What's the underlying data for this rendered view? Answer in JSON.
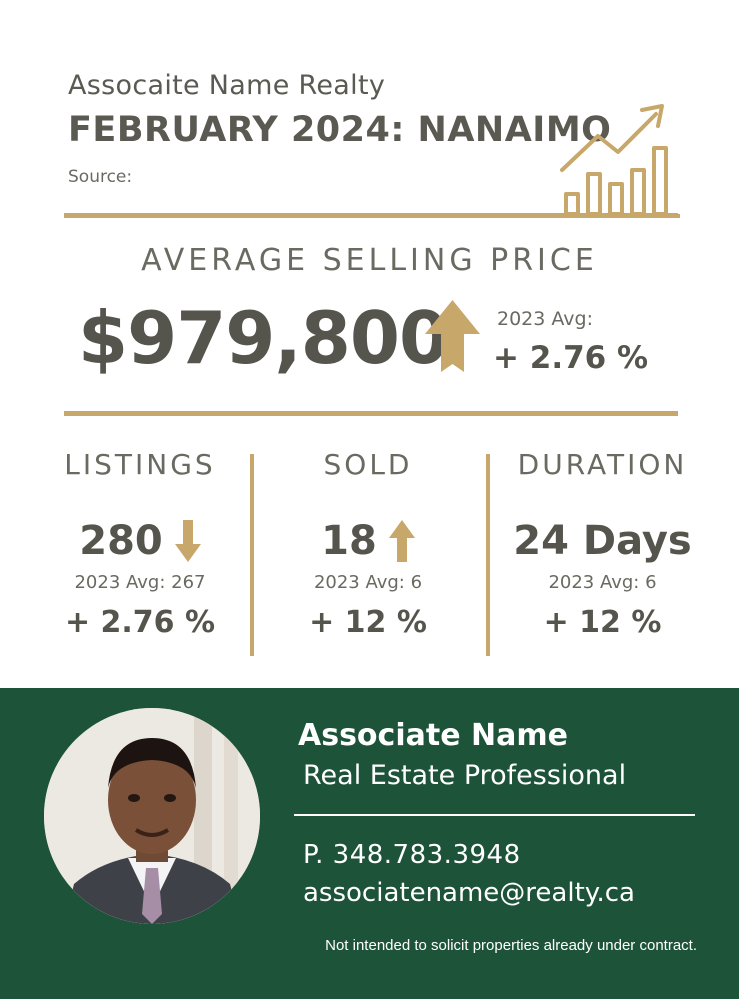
{
  "header": {
    "company": "Assocaite Name Realty",
    "headline": "FEBRUARY 2024: NANAIMO",
    "source": "Source:",
    "icon": "growth-chart-icon"
  },
  "average_selling_price": {
    "title": "AVERAGE SELLING PRICE",
    "value": "$979,800",
    "trend_icon": "arrow-up-icon",
    "avg_label": "2023 Avg:",
    "change": "+ 2.76 %"
  },
  "stats": [
    {
      "title": "LISTINGS",
      "value": "280",
      "trend_icon": "arrow-down-icon",
      "avg": "2023 Avg: 267",
      "change": "+ 2.76 %"
    },
    {
      "title": "SOLD",
      "value": "18",
      "trend_icon": "arrow-up-icon",
      "avg": "2023 Avg: 6",
      "change": "+ 12 %"
    },
    {
      "title": "DURATION",
      "value": "24 Days",
      "avg": "2023 Avg: 6",
      "change": "+ 12 %"
    }
  ],
  "agent": {
    "name": "Associate Name",
    "role": "Real Estate Professional",
    "phone": "P. 348.783.3948",
    "email": "associatename@realty.ca",
    "photo_icon": "agent-portrait"
  },
  "disclaimer": "Not intended to solicit properties already under contract.",
  "colors": {
    "gold": "#c7a76a",
    "green": "#1d5339",
    "text_dark": "#55554d"
  }
}
